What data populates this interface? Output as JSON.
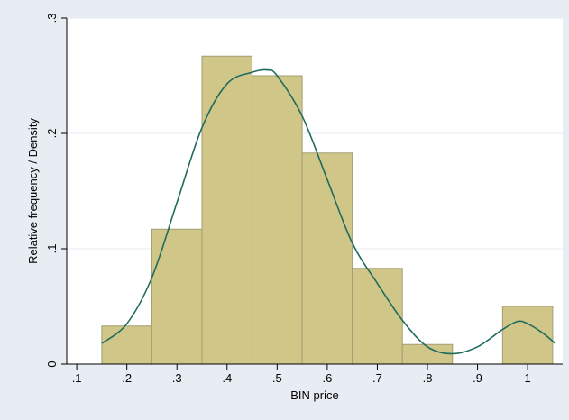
{
  "chart_data": {
    "type": "bar",
    "xlabel": "BIN price",
    "ylabel": "Relative frequency / Density",
    "xlim": [
      0.08,
      1.07
    ],
    "ylim": [
      0,
      0.3
    ],
    "xticks": [
      {
        "value": 0.1,
        "label": ".1"
      },
      {
        "value": 0.2,
        "label": ".2"
      },
      {
        "value": 0.3,
        "label": ".3"
      },
      {
        "value": 0.4,
        "label": ".4"
      },
      {
        "value": 0.5,
        "label": ".5"
      },
      {
        "value": 0.6,
        "label": ".6"
      },
      {
        "value": 0.7,
        "label": ".7"
      },
      {
        "value": 0.8,
        "label": ".8"
      },
      {
        "value": 0.9,
        "label": ".9"
      },
      {
        "value": 1.0,
        "label": "1"
      }
    ],
    "yticks": [
      {
        "value": 0,
        "label": "0"
      },
      {
        "value": 0.1,
        "label": ".1"
      },
      {
        "value": 0.2,
        "label": ".2"
      },
      {
        "value": 0.3,
        "label": ".3"
      }
    ],
    "grid": true,
    "histogram_bins": [
      {
        "start": 0.15,
        "end": 0.25,
        "value": 0.033
      },
      {
        "start": 0.25,
        "end": 0.35,
        "value": 0.117
      },
      {
        "start": 0.35,
        "end": 0.45,
        "value": 0.267
      },
      {
        "start": 0.45,
        "end": 0.55,
        "value": 0.25
      },
      {
        "start": 0.55,
        "end": 0.65,
        "value": 0.183
      },
      {
        "start": 0.65,
        "end": 0.75,
        "value": 0.083
      },
      {
        "start": 0.75,
        "end": 0.85,
        "value": 0.017
      },
      {
        "start": 0.85,
        "end": 0.95,
        "value": 0.0
      },
      {
        "start": 0.95,
        "end": 1.05,
        "value": 0.05
      }
    ],
    "density_curve": [
      [
        0.15,
        0.018
      ],
      [
        0.2,
        0.035
      ],
      [
        0.25,
        0.075
      ],
      [
        0.3,
        0.14
      ],
      [
        0.35,
        0.205
      ],
      [
        0.4,
        0.243
      ],
      [
        0.45,
        0.253
      ],
      [
        0.48,
        0.255
      ],
      [
        0.5,
        0.25
      ],
      [
        0.55,
        0.215
      ],
      [
        0.6,
        0.16
      ],
      [
        0.65,
        0.105
      ],
      [
        0.7,
        0.07
      ],
      [
        0.75,
        0.038
      ],
      [
        0.8,
        0.015
      ],
      [
        0.85,
        0.009
      ],
      [
        0.9,
        0.015
      ],
      [
        0.95,
        0.03
      ],
      [
        0.98,
        0.037
      ],
      [
        1.0,
        0.035
      ],
      [
        1.03,
        0.027
      ],
      [
        1.055,
        0.018
      ]
    ],
    "colors": {
      "background": "#e8edf4",
      "plot_bg": "#ffffff",
      "bar_fill": "#cfc688",
      "bar_stroke": "#a39e72",
      "curve": "#1f6b5e",
      "grid": "#e7ebf1"
    }
  }
}
